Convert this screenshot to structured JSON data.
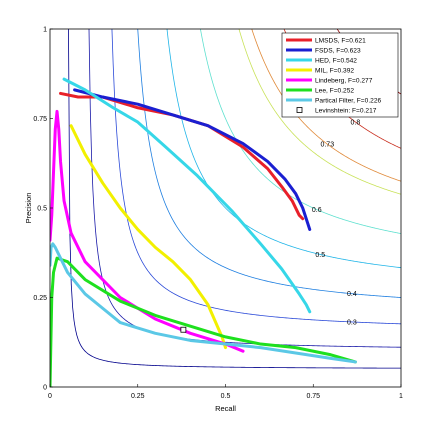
{
  "chart_data": {
    "type": "line",
    "xlabel": "Recall",
    "ylabel": "Precision",
    "xlim": [
      0,
      1
    ],
    "ylim": [
      0,
      1
    ],
    "grid": false,
    "legend_position": "top-right",
    "x_ticks": [
      {
        "value": 0,
        "label": "0"
      },
      {
        "value": 0.25,
        "label": "0.25"
      },
      {
        "value": 0.5,
        "label": "0.5"
      },
      {
        "value": 0.75,
        "label": "0.75"
      },
      {
        "value": 1,
        "label": "1"
      }
    ],
    "y_ticks": [
      {
        "value": 0,
        "label": "0"
      },
      {
        "value": 0.25,
        "label": "0.25"
      },
      {
        "value": 0.5,
        "label": "0.5"
      },
      {
        "value": 0.75,
        "label": "0.75"
      },
      {
        "value": 1,
        "label": "1"
      }
    ],
    "iso_f_contours": [
      {
        "f": 0.1,
        "color": "#00008b",
        "label": ""
      },
      {
        "f": 0.2,
        "color": "#1a1aa8",
        "label": ""
      },
      {
        "f": 0.3,
        "color": "#2b4ad8",
        "label": "0.3"
      },
      {
        "f": 0.4,
        "color": "#1f7fe0",
        "label": "0.4"
      },
      {
        "f": 0.5,
        "color": "#21b5e8",
        "label": "0.5"
      },
      {
        "f": 0.6,
        "color": "#5fe0cf",
        "label": "0.6"
      },
      {
        "f": 0.7,
        "color": "#c9e25a",
        "label": ""
      },
      {
        "f": 0.73,
        "color": "#e08a3a",
        "label": "0.73"
      },
      {
        "f": 0.8,
        "color": "#c93020",
        "label": "0.8"
      },
      {
        "f": 0.9,
        "color": "#8b0000",
        "label": ""
      }
    ],
    "series": [
      {
        "name": "LMSDS, F=0.621",
        "color": "#e8202a",
        "width": 3,
        "x": [
          0.03,
          0.08,
          0.15,
          0.25,
          0.35,
          0.45,
          0.55,
          0.62,
          0.66,
          0.69,
          0.71,
          0.72
        ],
        "y": [
          0.82,
          0.81,
          0.81,
          0.78,
          0.76,
          0.73,
          0.67,
          0.61,
          0.56,
          0.52,
          0.48,
          0.47
        ]
      },
      {
        "name": "FSDS, F=0.623",
        "color": "#1a1fd1",
        "width": 3,
        "x": [
          0.07,
          0.15,
          0.25,
          0.35,
          0.45,
          0.55,
          0.62,
          0.67,
          0.7,
          0.72,
          0.74
        ],
        "y": [
          0.83,
          0.81,
          0.79,
          0.76,
          0.73,
          0.68,
          0.63,
          0.58,
          0.54,
          0.5,
          0.44
        ]
      },
      {
        "name": "HED, F=0.542",
        "color": "#36d7e8",
        "width": 3,
        "x": [
          0.04,
          0.1,
          0.18,
          0.25,
          0.33,
          0.42,
          0.52,
          0.6,
          0.66,
          0.71,
          0.73,
          0.74
        ],
        "y": [
          0.86,
          0.83,
          0.78,
          0.74,
          0.67,
          0.59,
          0.49,
          0.4,
          0.33,
          0.26,
          0.23,
          0.21
        ]
      },
      {
        "name": "MIL, F=0.392",
        "color": "#f2f000",
        "width": 3,
        "x": [
          0.06,
          0.1,
          0.15,
          0.2,
          0.25,
          0.3,
          0.35,
          0.4,
          0.45,
          0.49,
          0.5
        ],
        "y": [
          0.73,
          0.65,
          0.57,
          0.5,
          0.44,
          0.39,
          0.35,
          0.3,
          0.23,
          0.14,
          0.11
        ]
      },
      {
        "name": "Lindeberg, F=0.277",
        "color": "#ff00ff",
        "width": 3,
        "x": [
          0.0,
          0.005,
          0.01,
          0.015,
          0.02,
          0.025,
          0.03,
          0.04,
          0.06,
          0.1,
          0.2,
          0.3,
          0.4,
          0.5,
          0.55
        ],
        "y": [
          0.41,
          0.48,
          0.6,
          0.72,
          0.77,
          0.72,
          0.63,
          0.52,
          0.43,
          0.35,
          0.25,
          0.19,
          0.15,
          0.12,
          0.1
        ]
      },
      {
        "name": "Lee, F=0.252",
        "color": "#1ee01e",
        "width": 3,
        "x": [
          0.0,
          0.002,
          0.005,
          0.01,
          0.02,
          0.05,
          0.1,
          0.2,
          0.3,
          0.4,
          0.5,
          0.6,
          0.7,
          0.8,
          0.87
        ],
        "y": [
          0.0,
          0.1,
          0.25,
          0.32,
          0.36,
          0.35,
          0.3,
          0.24,
          0.2,
          0.17,
          0.14,
          0.12,
          0.11,
          0.09,
          0.07
        ]
      },
      {
        "name": "Partical Filter, F=0.226",
        "color": "#5bc8e6",
        "width": 3,
        "x": [
          0.0,
          0.003,
          0.008,
          0.015,
          0.03,
          0.05,
          0.1,
          0.15,
          0.2,
          0.3,
          0.4,
          0.5,
          0.6,
          0.7,
          0.8,
          0.87
        ],
        "y": [
          0.34,
          0.39,
          0.4,
          0.39,
          0.36,
          0.32,
          0.26,
          0.22,
          0.18,
          0.15,
          0.13,
          0.12,
          0.11,
          0.095,
          0.08,
          0.07
        ]
      },
      {
        "name": "Levinshtein: F=0.217",
        "color": "#000000",
        "marker": "square",
        "x": [
          0.38
        ],
        "y": [
          0.16
        ]
      }
    ]
  }
}
